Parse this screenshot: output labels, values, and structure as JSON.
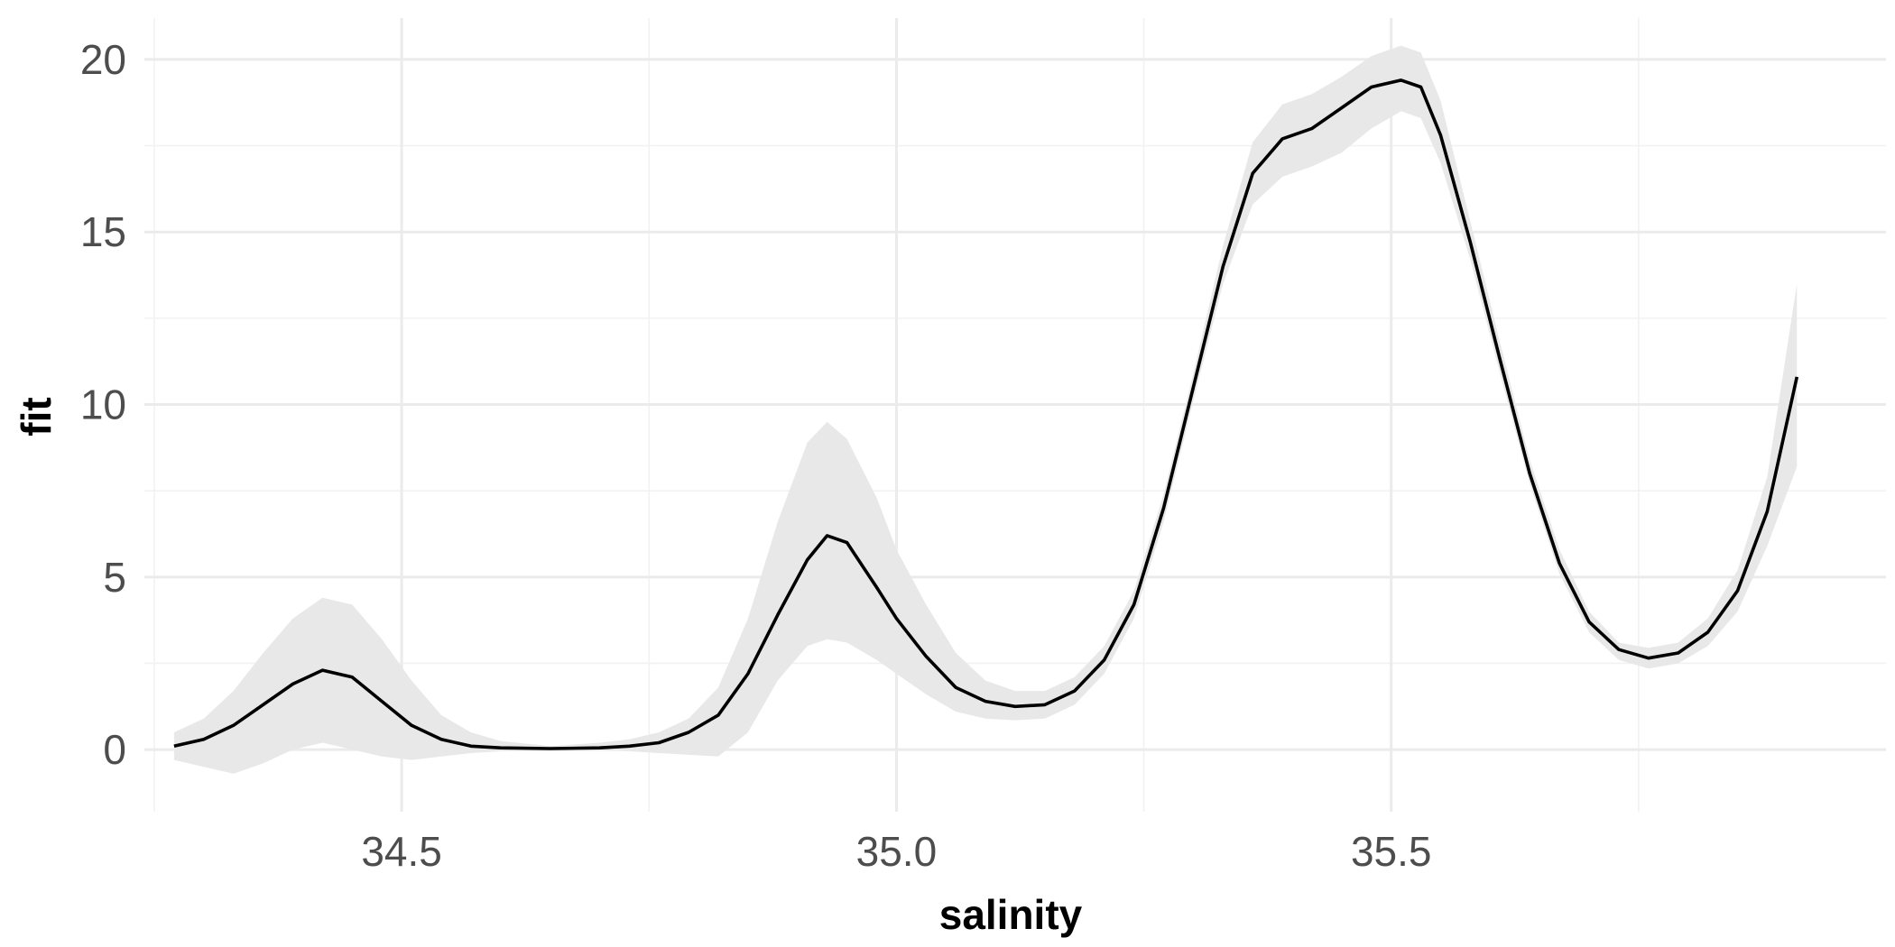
{
  "chart_data": {
    "type": "line",
    "title": "",
    "xlabel": "salinity",
    "ylabel": "fit",
    "xlim": [
      34.24,
      36.0
    ],
    "ylim": [
      -1.8,
      21.2
    ],
    "x_ticks": [
      34.5,
      35.0,
      35.5
    ],
    "x_tick_labels": [
      "34.5",
      "35.0",
      "35.5"
    ],
    "y_ticks": [
      0,
      5,
      10,
      15,
      20
    ],
    "y_tick_labels": [
      "0",
      "5",
      "10",
      "15",
      "20"
    ],
    "grid": true,
    "legend": "none",
    "colors": {
      "line": "#000000",
      "ribbon": "#e8e8e8",
      "grid": "#ebebeb"
    },
    "series": [
      {
        "x": [
          34.27,
          34.3,
          34.33,
          34.36,
          34.39,
          34.42,
          34.45,
          34.48,
          34.51,
          34.54,
          34.57,
          34.6,
          34.65,
          34.7,
          34.73,
          34.76,
          34.79,
          34.82,
          34.85,
          34.88,
          34.91,
          34.93,
          34.95,
          34.98,
          35.0,
          35.03,
          35.06,
          35.09,
          35.12,
          35.15,
          35.18,
          35.21,
          35.24,
          35.27,
          35.3,
          35.33,
          35.36,
          35.39,
          35.42,
          35.45,
          35.48,
          35.51,
          35.53,
          35.55,
          35.58,
          35.61,
          35.64,
          35.67,
          35.7,
          35.73,
          35.76,
          35.79,
          35.82,
          35.85,
          35.88,
          35.91
        ],
        "y": [
          0.1,
          0.3,
          0.7,
          1.3,
          1.9,
          2.3,
          2.1,
          1.4,
          0.7,
          0.3,
          0.1,
          0.05,
          0.03,
          0.05,
          0.1,
          0.2,
          0.5,
          1.0,
          2.2,
          3.9,
          5.5,
          6.2,
          6.0,
          4.7,
          3.8,
          2.7,
          1.8,
          1.4,
          1.25,
          1.3,
          1.7,
          2.6,
          4.2,
          7.0,
          10.5,
          14.0,
          16.7,
          17.7,
          18.0,
          18.6,
          19.2,
          19.4,
          19.2,
          17.8,
          14.7,
          11.3,
          8.0,
          5.4,
          3.7,
          2.9,
          2.65,
          2.8,
          3.4,
          4.6,
          6.9,
          10.8
        ]
      }
    ],
    "ribbon": {
      "x": [
        34.27,
        34.3,
        34.33,
        34.36,
        34.39,
        34.42,
        34.45,
        34.48,
        34.51,
        34.54,
        34.57,
        34.6,
        34.65,
        34.7,
        34.73,
        34.76,
        34.79,
        34.82,
        34.85,
        34.88,
        34.91,
        34.93,
        34.95,
        34.98,
        35.0,
        35.03,
        35.06,
        35.09,
        35.12,
        35.15,
        35.18,
        35.21,
        35.24,
        35.27,
        35.3,
        35.33,
        35.36,
        35.39,
        35.42,
        35.45,
        35.48,
        35.51,
        35.53,
        35.55,
        35.58,
        35.61,
        35.64,
        35.67,
        35.7,
        35.73,
        35.76,
        35.79,
        35.82,
        35.85,
        35.88,
        35.91
      ],
      "lower": [
        -0.3,
        -0.5,
        -0.7,
        -0.4,
        0.0,
        0.2,
        0.0,
        -0.2,
        -0.3,
        -0.2,
        -0.1,
        -0.05,
        0.0,
        0.0,
        -0.05,
        -0.1,
        -0.15,
        -0.2,
        0.5,
        2.0,
        3.0,
        3.2,
        3.1,
        2.6,
        2.2,
        1.6,
        1.1,
        0.9,
        0.85,
        0.9,
        1.3,
        2.2,
        3.8,
        6.6,
        10.1,
        13.5,
        15.8,
        16.6,
        16.9,
        17.3,
        18.0,
        18.5,
        18.3,
        17.0,
        14.2,
        10.9,
        7.7,
        5.1,
        3.4,
        2.6,
        2.35,
        2.5,
        3.0,
        4.0,
        5.9,
        8.2
      ],
      "upper": [
        0.5,
        0.9,
        1.7,
        2.8,
        3.8,
        4.4,
        4.2,
        3.2,
        2.0,
        1.0,
        0.5,
        0.25,
        0.1,
        0.2,
        0.3,
        0.5,
        0.9,
        1.8,
        3.8,
        6.6,
        8.9,
        9.5,
        9.0,
        7.3,
        5.8,
        4.2,
        2.8,
        2.0,
        1.7,
        1.7,
        2.1,
        3.0,
        4.6,
        7.4,
        10.9,
        14.6,
        17.6,
        18.7,
        19.0,
        19.5,
        20.1,
        20.4,
        20.2,
        18.8,
        15.3,
        11.8,
        8.4,
        5.8,
        4.0,
        3.1,
        2.95,
        3.1,
        3.8,
        5.2,
        7.9,
        13.5
      ]
    }
  }
}
